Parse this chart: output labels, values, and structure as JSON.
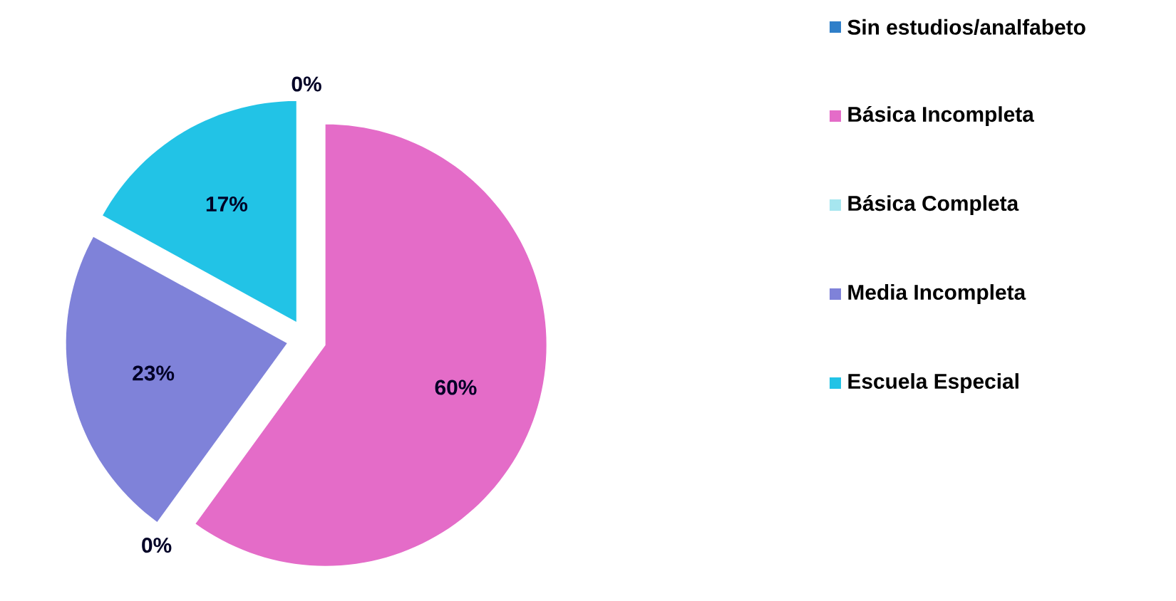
{
  "chart_data": {
    "type": "pie",
    "categories": [
      "Sin estudios/analfabeto",
      "Básica Incompleta",
      "Básica Completa",
      "Media Incompleta",
      "Escuela Especial"
    ],
    "values": [
      0,
      60,
      0,
      23,
      17
    ],
    "colors": [
      "#2f7fc9",
      "#e46cc8",
      "#a6e6ef",
      "#7f82d9",
      "#22c3e6"
    ],
    "value_labels": [
      "0%",
      "60%",
      "0%",
      "23%",
      "17%"
    ],
    "legend": "right"
  }
}
